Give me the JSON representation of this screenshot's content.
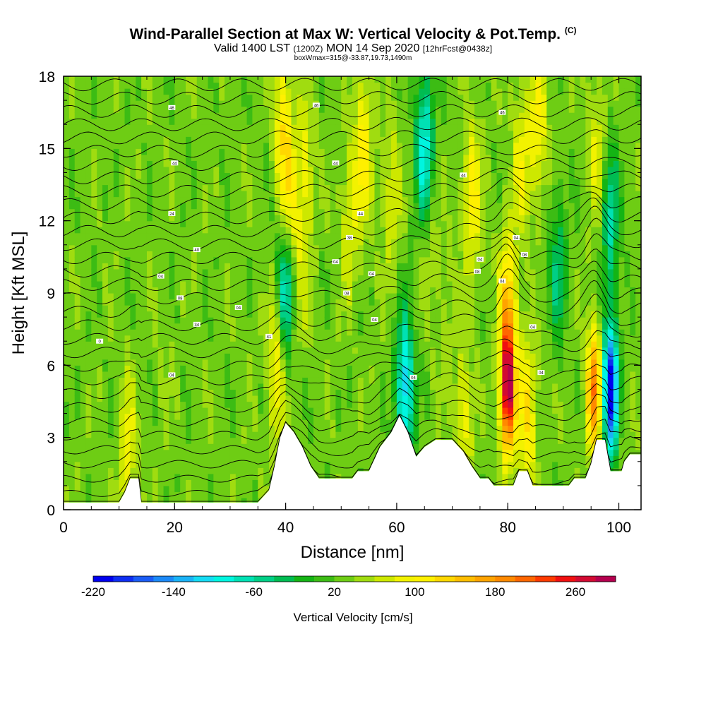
{
  "title": {
    "main": "Wind-Parallel Section at Max W: Vertical Velocity & Pot.Temp.",
    "copyright": "(C)",
    "valid_prefix": "Valid 1400 LST",
    "valid_utc": "(1200Z)",
    "valid_date": "MON 14 Sep 2020",
    "forecast": "[12hrFcst@0438z]",
    "boxinfo": "boxWmax=315@-33.87,19.73,1490m"
  },
  "chart_data": {
    "type": "heatmap",
    "title": "Wind-Parallel Section at Max W: Vertical Velocity & Pot.Temp.",
    "xlabel": "Distance [nm]",
    "ylabel": "Height [Kft MSL]",
    "xlim": [
      0,
      104
    ],
    "ylim": [
      0,
      18
    ],
    "xticks": [
      0,
      20,
      40,
      60,
      80,
      100
    ],
    "yticks": [
      0,
      3,
      6,
      9,
      12,
      15,
      18
    ],
    "x_tick_labels": [
      "0",
      "20",
      "40",
      "60",
      "80",
      "100"
    ],
    "y_tick_labels": [
      "0",
      "3",
      "6",
      "9",
      "12",
      "15",
      "18"
    ],
    "colorbar": {
      "label": "Vertical Velocity [cm/s]",
      "min": -220,
      "max": 300,
      "step": 20,
      "tick_values": [
        -220,
        -140,
        -60,
        20,
        100,
        180,
        260
      ],
      "tick_labels": [
        "-220",
        "-140",
        "-60",
        "20",
        "100",
        "180",
        "260"
      ],
      "colors": [
        "#0000ee",
        "#0e2ef2",
        "#1a5cf5",
        "#1b89f7",
        "#1ab2f6",
        "#14dbf4",
        "#00f5e0",
        "#00e1b4",
        "#00cf86",
        "#00bc52",
        "#14b414",
        "#3cbc14",
        "#6ecd14",
        "#a0dc10",
        "#cde800",
        "#f2f200",
        "#fff000",
        "#ffd700",
        "#ffbd00",
        "#ffa300",
        "#ff8900",
        "#ff6600",
        "#ff3a00",
        "#f01010",
        "#d20a32",
        "#b4004e"
      ]
    },
    "vertical_velocity_cells": [
      {
        "x": 11.5,
        "z": 2.5,
        "w": 90
      },
      {
        "x": 18,
        "z": 6,
        "w": 40
      },
      {
        "x": 38.5,
        "z": 6,
        "w": 110
      },
      {
        "x": 39.5,
        "z": 16,
        "w": 110
      },
      {
        "x": 40.5,
        "z": 12,
        "w": 130
      },
      {
        "x": 40,
        "z": 9.5,
        "w": -120
      },
      {
        "x": 42.5,
        "z": 9,
        "w": 60
      },
      {
        "x": 43.5,
        "z": 14,
        "w": 90
      },
      {
        "x": 51.5,
        "z": 12,
        "w": 80
      },
      {
        "x": 54,
        "z": 15,
        "w": 110
      },
      {
        "x": 59,
        "z": 13,
        "w": 80
      },
      {
        "x": 61.5,
        "z": 5,
        "w": -120
      },
      {
        "x": 65,
        "z": 15,
        "w": -100
      },
      {
        "x": 66,
        "z": 11,
        "w": 60
      },
      {
        "x": 69,
        "z": 8,
        "w": 50
      },
      {
        "x": 73.5,
        "z": 13,
        "w": 110
      },
      {
        "x": 72,
        "z": 3.5,
        "w": 90
      },
      {
        "x": 80,
        "z": 5,
        "w": 290
      },
      {
        "x": 80,
        "z": 8.5,
        "w": 130
      },
      {
        "x": 82.5,
        "z": 14.5,
        "w": 90
      },
      {
        "x": 83.5,
        "z": 4,
        "w": 120
      },
      {
        "x": 85.5,
        "z": 16,
        "w": 100
      },
      {
        "x": 89,
        "z": 10,
        "w": -40
      },
      {
        "x": 95.5,
        "z": 5,
        "w": 200
      },
      {
        "x": 96,
        "z": 15,
        "w": 80
      },
      {
        "x": 98.5,
        "z": 5,
        "w": -230
      },
      {
        "x": 98.5,
        "z": 12,
        "w": -60
      }
    ],
    "terrain_height_kft": [
      [
        0,
        0.3
      ],
      [
        10,
        0.3
      ],
      [
        11,
        0.7
      ],
      [
        12,
        1.3
      ],
      [
        13.5,
        1.3
      ],
      [
        13.6,
        0.3
      ],
      [
        35,
        0.3
      ],
      [
        37,
        0.8
      ],
      [
        38,
        1.8
      ],
      [
        39,
        3.0
      ],
      [
        40,
        3.6
      ],
      [
        41.5,
        3.2
      ],
      [
        43,
        2.6
      ],
      [
        44.5,
        1.8
      ],
      [
        46,
        1.3
      ],
      [
        52,
        1.3
      ],
      [
        53,
        1.6
      ],
      [
        55,
        1.6
      ],
      [
        57,
        2.6
      ],
      [
        59,
        3.2
      ],
      [
        60.5,
        3.9
      ],
      [
        62,
        3.2
      ],
      [
        63.5,
        2.2
      ],
      [
        65,
        2.6
      ],
      [
        67,
        2.9
      ],
      [
        70,
        2.9
      ],
      [
        72,
        2.4
      ],
      [
        73.5,
        1.8
      ],
      [
        75,
        1.3
      ],
      [
        76.5,
        1.3
      ],
      [
        77.5,
        1.0
      ],
      [
        81,
        1.0
      ],
      [
        82,
        1.6
      ],
      [
        83.5,
        1.6
      ],
      [
        84.5,
        1.0
      ],
      [
        91,
        1.0
      ],
      [
        92,
        1.3
      ],
      [
        94,
        1.3
      ],
      [
        95,
        1.9
      ],
      [
        96,
        2.9
      ],
      [
        97.5,
        2.9
      ],
      [
        98.5,
        1.6
      ],
      [
        100.5,
        1.6
      ],
      [
        101,
        2.0
      ],
      [
        102,
        2.3
      ],
      [
        104,
        2.3
      ]
    ],
    "theta_levels": 32,
    "contour_labels": [
      {
        "x": 6.5,
        "z": 7.0,
        "text": "0"
      },
      {
        "x": 19.5,
        "z": 5.6,
        "text": "04"
      },
      {
        "x": 19.5,
        "z": 12.3,
        "text": "24"
      },
      {
        "x": 20,
        "z": 14.4,
        "text": "44"
      },
      {
        "x": 19.5,
        "z": 16.7,
        "text": "46"
      },
      {
        "x": 17.5,
        "z": 9.7,
        "text": "04"
      },
      {
        "x": 21,
        "z": 8.8,
        "text": "08"
      },
      {
        "x": 24,
        "z": 10.8,
        "text": "40"
      },
      {
        "x": 24,
        "z": 7.7,
        "text": "34"
      },
      {
        "x": 31.5,
        "z": 8.4,
        "text": "04"
      },
      {
        "x": 37,
        "z": 7.2,
        "text": "41"
      },
      {
        "x": 45.5,
        "z": 16.8,
        "text": "46"
      },
      {
        "x": 49,
        "z": 14.4,
        "text": "44"
      },
      {
        "x": 49,
        "z": 10.3,
        "text": "04"
      },
      {
        "x": 51,
        "z": 9.0,
        "text": "08"
      },
      {
        "x": 51.5,
        "z": 11.3,
        "text": "38"
      },
      {
        "x": 53.5,
        "z": 12.3,
        "text": "44"
      },
      {
        "x": 55.5,
        "z": 9.8,
        "text": "04"
      },
      {
        "x": 56,
        "z": 7.9,
        "text": "04"
      },
      {
        "x": 63,
        "z": 5.5,
        "text": "04"
      },
      {
        "x": 72,
        "z": 13.9,
        "text": "44"
      },
      {
        "x": 75,
        "z": 10.4,
        "text": "04"
      },
      {
        "x": 74.5,
        "z": 9.9,
        "text": "08"
      },
      {
        "x": 79,
        "z": 9.5,
        "text": "04"
      },
      {
        "x": 79,
        "z": 16.5,
        "text": "46"
      },
      {
        "x": 81.5,
        "z": 11.3,
        "text": "04"
      },
      {
        "x": 83,
        "z": 10.6,
        "text": "08"
      },
      {
        "x": 84.5,
        "z": 7.6,
        "text": "04"
      },
      {
        "x": 86,
        "z": 5.7,
        "text": "04"
      }
    ]
  }
}
